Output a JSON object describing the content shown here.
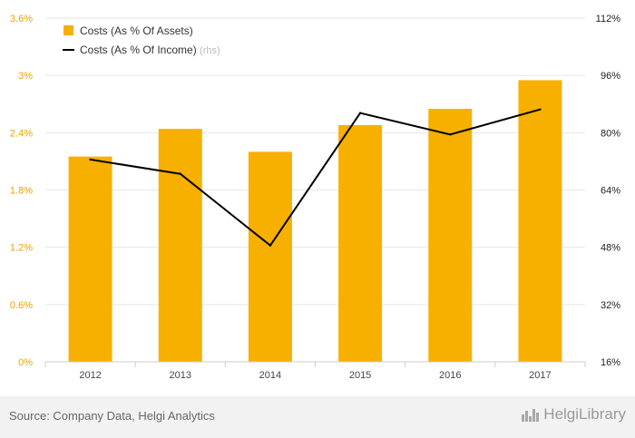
{
  "chart_data": {
    "type": "bar",
    "categories": [
      "2012",
      "2013",
      "2014",
      "2015",
      "2016",
      "2017"
    ],
    "series": [
      {
        "name": "Costs (As % Of Assets)",
        "type": "bar",
        "axis": "left",
        "values": [
          2.15,
          2.44,
          2.2,
          2.48,
          2.65,
          2.95
        ]
      },
      {
        "name": "Costs (As % Of Income)",
        "type": "line",
        "axis": "right",
        "values": [
          72.5,
          68.5,
          48.5,
          85.5,
          79.5,
          86.5
        ]
      }
    ],
    "left_axis": {
      "ticks": [
        "0%",
        "0.6%",
        "1.2%",
        "1.8%",
        "2.4%",
        "3%",
        "3.6%"
      ],
      "ylim": [
        0,
        3.6
      ]
    },
    "right_axis": {
      "ticks": [
        "16%",
        "32%",
        "48%",
        "64%",
        "80%",
        "96%",
        "112%"
      ],
      "ylim": [
        16,
        112
      ]
    },
    "legend": {
      "bar_label": "Costs (As % Of Assets)",
      "line_label": "Costs (As % Of Income)",
      "line_suffix": "(rhs)",
      "placement": "top-left"
    },
    "grid": "horizontal",
    "colors": {
      "bar": "#f7b000",
      "line": "#000000",
      "left_tick": "#e8a300",
      "right_tick": "#222222",
      "grid": "#e6e6e6"
    }
  },
  "footer": {
    "source": "Source: Company Data, Helgi Analytics",
    "brand": "HelgiLibrary"
  }
}
